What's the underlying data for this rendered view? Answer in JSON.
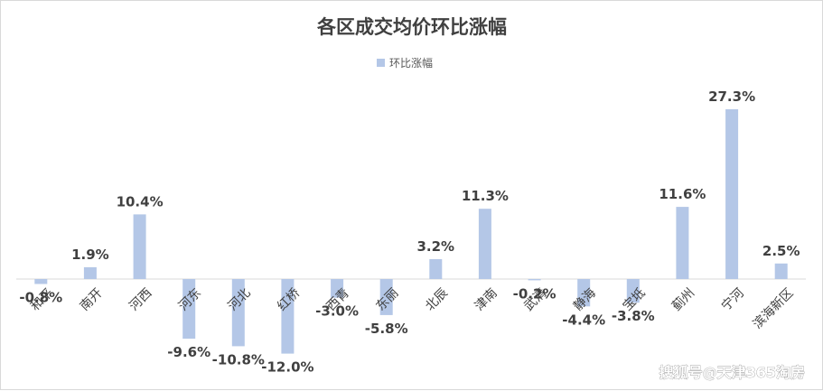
{
  "chart_data": {
    "type": "bar",
    "title": "各区成交均价环比涨幅",
    "legend": {
      "label": "环比涨幅",
      "position": "top"
    },
    "categories": [
      "和平",
      "南开",
      "河西",
      "河东",
      "河北",
      "红桥",
      "西青",
      "东丽",
      "北辰",
      "津南",
      "武清",
      "静海",
      "宝坻",
      "蓟州",
      "宁河",
      "滨海新区"
    ],
    "series": [
      {
        "name": "环比涨幅",
        "values": [
          -0.8,
          1.9,
          10.4,
          -9.6,
          -10.8,
          -12.0,
          -3.0,
          -5.8,
          3.2,
          11.3,
          -0.2,
          -4.4,
          -3.8,
          11.6,
          27.3,
          2.5
        ],
        "labels": [
          "-0.8%",
          "1.9%",
          "10.4%",
          "-9.6%",
          "-10.8%",
          "-12.0%",
          "-3.0%",
          "-5.8%",
          "3.2%",
          "11.3%",
          "-0.2%",
          "-4.4%",
          "-3.8%",
          "11.6%",
          "27.3%",
          "2.5%"
        ]
      }
    ],
    "grid": false,
    "colors": {
      "bar": "#b4c7e7",
      "axis": "#d9d9d9",
      "text": "#404040"
    }
  },
  "watermark": "搜狐号@天津365淘房"
}
